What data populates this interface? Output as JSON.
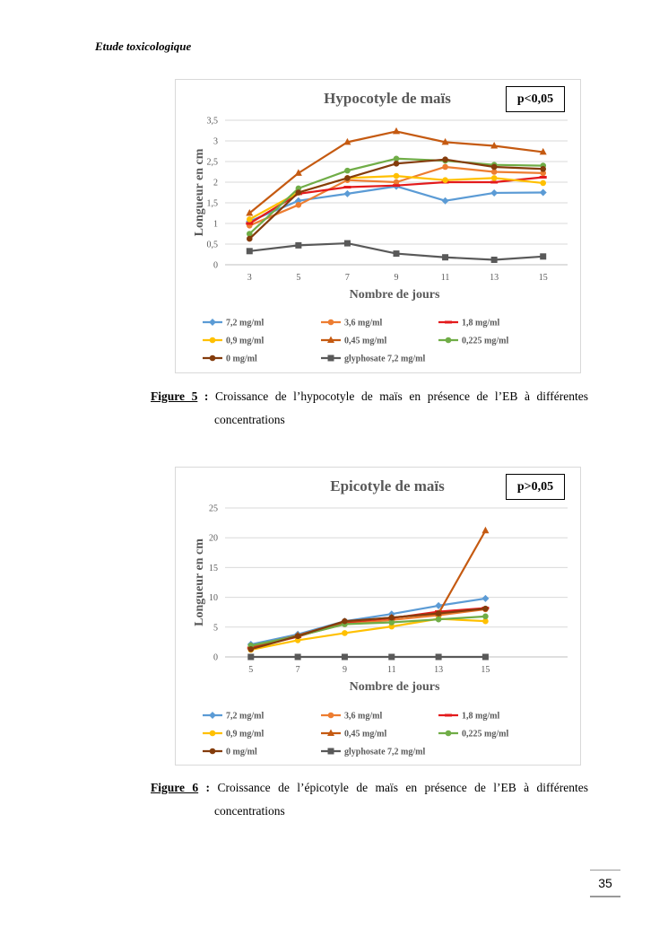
{
  "header": {
    "title": "Etude toxicologique"
  },
  "page_number": "35",
  "series_colors": [
    "#5b9bd5",
    "#ed7d31",
    "#e31a1c",
    "#ffc000",
    "#c55a11",
    "#70ad47",
    "#843c0c",
    "#595959"
  ],
  "chart_data": [
    {
      "type": "line",
      "title": "Hypocotyle de maïs",
      "stat_label": "p<0,05",
      "xlabel": "Nombre de jours",
      "ylabel": "Longueur en cm",
      "x": [
        3,
        5,
        7,
        9,
        11,
        13,
        15
      ],
      "x_tick_labels": [
        "3",
        "5",
        "7",
        "9",
        "11",
        "13",
        "15"
      ],
      "ylim": [
        0,
        3.5
      ],
      "y_ticks": [
        0,
        0.5,
        1,
        1.5,
        2,
        2.5,
        3,
        3.5
      ],
      "y_tick_labels": [
        "0",
        "0,5",
        "1",
        "1,5",
        "2",
        "2,5",
        "3",
        "3,5"
      ],
      "grid": true,
      "legend_position": "bottom",
      "series": [
        {
          "name": "7,2 mg/ml",
          "marker": "diamond",
          "values": [
            1.05,
            1.55,
            1.72,
            1.9,
            1.55,
            1.74,
            1.75
          ]
        },
        {
          "name": "3,6 mg/ml",
          "marker": "circle",
          "values": [
            0.95,
            1.45,
            2.05,
            2.0,
            2.37,
            2.25,
            2.22
          ]
        },
        {
          "name": "1,8 mg/ml",
          "marker": "dash",
          "values": [
            1.0,
            1.72,
            1.88,
            1.92,
            2.0,
            2.0,
            2.12
          ]
        },
        {
          "name": "0,9 mg/ml",
          "marker": "circle",
          "values": [
            1.1,
            1.75,
            2.1,
            2.15,
            2.05,
            2.1,
            1.98
          ]
        },
        {
          "name": "0,45 mg/ml",
          "marker": "triangle",
          "values": [
            1.25,
            2.22,
            2.97,
            3.23,
            2.97,
            2.88,
            2.73
          ]
        },
        {
          "name": "0,225 mg/ml",
          "marker": "circle",
          "values": [
            0.75,
            1.85,
            2.28,
            2.57,
            2.52,
            2.42,
            2.4
          ]
        },
        {
          "name": "0 mg/ml",
          "marker": "circle",
          "values": [
            0.63,
            1.75,
            2.1,
            2.45,
            2.55,
            2.37,
            2.32
          ]
        },
        {
          "name": "glyphosate 7,2 mg/ml",
          "marker": "square",
          "values": [
            0.33,
            0.47,
            0.52,
            0.27,
            0.18,
            0.12,
            0.2
          ]
        }
      ]
    },
    {
      "type": "line",
      "title": "Epicotyle de maïs",
      "stat_label": "p>0,05",
      "xlabel": "Nombre de jours",
      "ylabel": "Longueur en cm",
      "x": [
        5,
        7,
        9,
        11,
        13,
        15
      ],
      "x_tick_labels": [
        "5",
        "7",
        "9",
        "11",
        "13",
        "15"
      ],
      "ylim": [
        0,
        25
      ],
      "y_ticks": [
        0,
        5,
        10,
        15,
        20,
        25
      ],
      "y_tick_labels": [
        "0",
        "5",
        "10",
        "15",
        "20",
        "25"
      ],
      "grid": true,
      "legend_position": "bottom",
      "series": [
        {
          "name": "7,2 mg/ml",
          "marker": "diamond",
          "values": [
            2.1,
            3.8,
            6.0,
            7.2,
            8.6,
            9.8
          ]
        },
        {
          "name": "3,6 mg/ml",
          "marker": "circle",
          "values": [
            1.4,
            3.5,
            5.5,
            6.2,
            7.0,
            8.0
          ]
        },
        {
          "name": "1,8 mg/ml",
          "marker": "dash",
          "values": [
            1.5,
            3.4,
            5.8,
            6.5,
            7.6,
            8.2
          ]
        },
        {
          "name": "0,9 mg/ml",
          "marker": "circle",
          "values": [
            1.2,
            2.8,
            4.0,
            5.1,
            6.4,
            6.0
          ]
        },
        {
          "name": "0,45 mg/ml",
          "marker": "triangle",
          "values": [
            1.8,
            3.6,
            5.9,
            6.6,
            7.3,
            21.2
          ]
        },
        {
          "name": "0,225 mg/ml",
          "marker": "circle",
          "values": [
            1.9,
            3.5,
            5.5,
            5.8,
            6.3,
            6.8
          ]
        },
        {
          "name": "0 mg/ml",
          "marker": "circle",
          "values": [
            1.3,
            3.5,
            6.0,
            6.6,
            7.3,
            8.1
          ]
        },
        {
          "name": "glyphosate 7,2 mg/ml",
          "marker": "square",
          "values": [
            0,
            0,
            0,
            0,
            0,
            0
          ]
        }
      ]
    }
  ],
  "figures": [
    {
      "label": "Figure 5",
      "sep": " : ",
      "line1": "Croissance de l’hypocotyle de maïs en présence de l’EB à différentes",
      "line2": "concentrations"
    },
    {
      "label": "Figure 6",
      "sep": " : ",
      "line1": "Croissance de l’épicotyle de maïs en présence de l’EB à différentes",
      "line2": "concentrations"
    }
  ]
}
